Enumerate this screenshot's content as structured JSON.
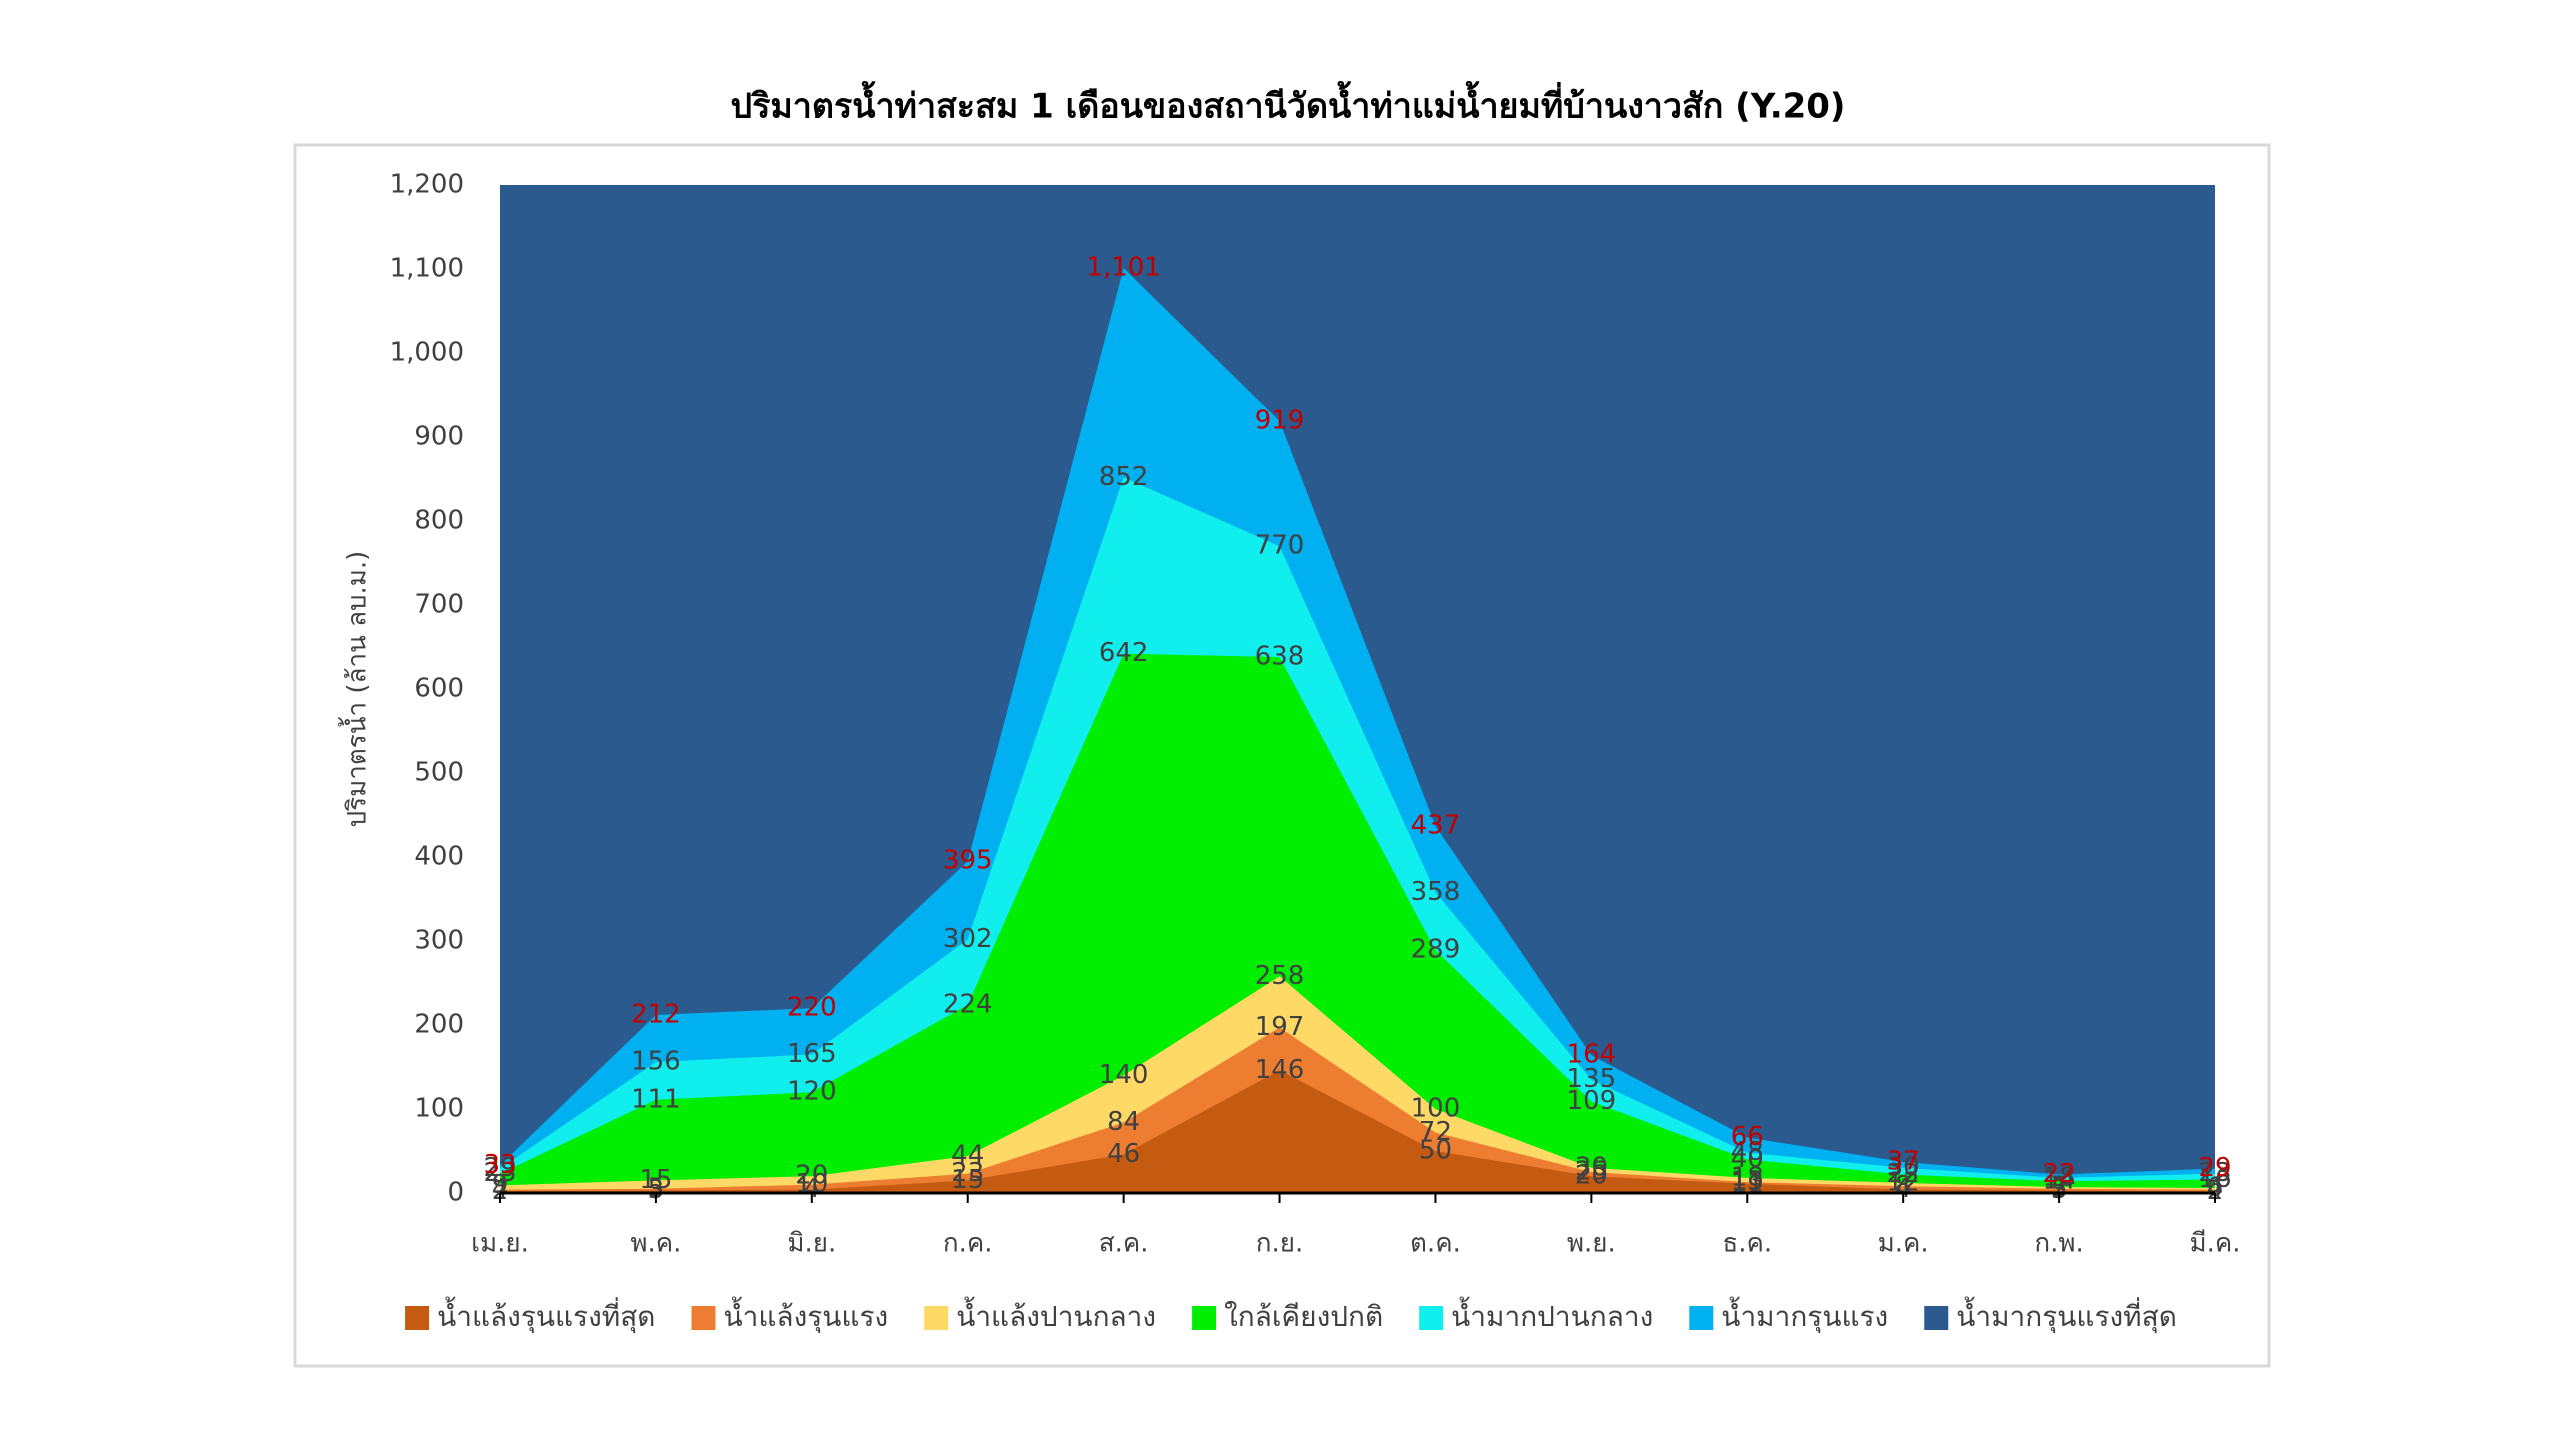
{
  "chart_data": {
    "type": "area",
    "title": "ปริมาตรน้ำท่าสะสม 1 เดือนของสถานีวัดน้ำท่าแม่น้ำยมที่บ้านงาวสัก (Y.20)",
    "y_label": "ปริมาตรน้ำ (ล้าน ลบ.ม.)",
    "categories": [
      "เม.ย.",
      "พ.ค.",
      "มิ.ย.",
      "ก.ค.",
      "ส.ค.",
      "ก.ย.",
      "ต.ค.",
      "พ.ย.",
      "ธ.ค.",
      "ม.ค.",
      "ก.พ.",
      "มี.ค."
    ],
    "ylim": [
      0,
      1200
    ],
    "yticks": [
      0,
      100,
      200,
      300,
      400,
      500,
      600,
      700,
      800,
      900,
      1000,
      1100,
      1200
    ],
    "yticks_labels": [
      "0",
      "100",
      "200",
      "300",
      "400",
      "500",
      "600",
      "700",
      "800",
      "900",
      "1,000",
      "1,100",
      "1,200"
    ],
    "series": [
      {
        "name": "น้ำแล้งรุนแรงที่สุด",
        "color": "#c55a11",
        "label_color": "#404040",
        "values": [
          2,
          3,
          4,
          15,
          46,
          146,
          50,
          20,
          11,
          4,
          3,
          2
        ]
      },
      {
        "name": "น้ำแล้งรุนแรง",
        "color": "#ed7d31",
        "label_color": "#404040",
        "values": [
          4,
          5,
          10,
          23,
          84,
          197,
          72,
          25,
          13,
          8,
          5,
          4
        ]
      },
      {
        "name": "น้ำแล้งปานกลาง",
        "color": "#ffd966",
        "label_color": "#404040",
        "values": [
          9,
          15,
          20,
          44,
          140,
          258,
          100,
          30,
          18,
          12,
          7,
          6
        ]
      },
      {
        "name": "ใกล้เคียงปกติ",
        "color": "#00ee00",
        "label_color": "#404040",
        "values": [
          23,
          111,
          120,
          224,
          642,
          638,
          289,
          109,
          40,
          22,
          14,
          16
        ]
      },
      {
        "name": "น้ำมากปานกลาง",
        "color": "#11eeee",
        "label_color": "#404040",
        "values": [
          29,
          156,
          165,
          302,
          852,
          770,
          358,
          135,
          48,
          30,
          18,
          23
        ]
      },
      {
        "name": "น้ำมากรุนแรง",
        "color": "#00b0f0",
        "label_color": "#c00000",
        "values": [
          33,
          212,
          220,
          395,
          1101,
          919,
          437,
          164,
          66,
          37,
          22,
          29
        ],
        "value_labels": [
          "33",
          "212",
          "220",
          "395",
          "1,101",
          "919",
          "437",
          "164",
          "66",
          "37",
          "22",
          "29"
        ]
      },
      {
        "name": "น้ำมากรุนแรงที่สุด",
        "color": "#2b5b8e"
      }
    ]
  }
}
